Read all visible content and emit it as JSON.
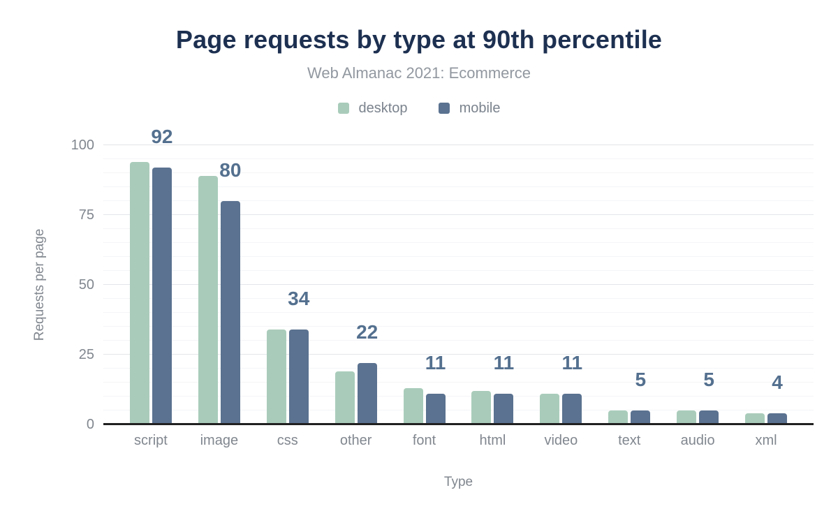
{
  "chart_data": {
    "type": "bar",
    "title": "Page requests by type at 90th percentile",
    "subtitle": "Web Almanac 2021: Ecommerce",
    "xlabel": "Type",
    "ylabel": "Requests per page",
    "categories": [
      "script",
      "image",
      "css",
      "other",
      "font",
      "html",
      "video",
      "text",
      "audio",
      "xml"
    ],
    "series": [
      {
        "name": "desktop",
        "color": "#a9ccba",
        "values": [
          94,
          89,
          34,
          19,
          13,
          12,
          11,
          5,
          5,
          4
        ]
      },
      {
        "name": "mobile",
        "color": "#5b7290",
        "values": [
          92,
          80,
          34,
          22,
          11,
          11,
          11,
          5,
          5,
          4
        ]
      }
    ],
    "bar_labels": [
      "92",
      "80",
      "34",
      "22",
      "11",
      "11",
      "11",
      "5",
      "5",
      "4"
    ],
    "bar_label_series": "mobile",
    "ylim": [
      0,
      100
    ],
    "yticks": [
      "0",
      "25",
      "50",
      "75",
      "100"
    ],
    "grid": true,
    "legend_position": "top",
    "colors": {
      "title": "#1d3051",
      "subtitle": "#9298a0",
      "axis_text": "#81878f",
      "value_label": "#54708f",
      "grid_major": "#e3e5e9",
      "grid_minor": "#f4f5f7",
      "baseline": "#212121"
    }
  }
}
